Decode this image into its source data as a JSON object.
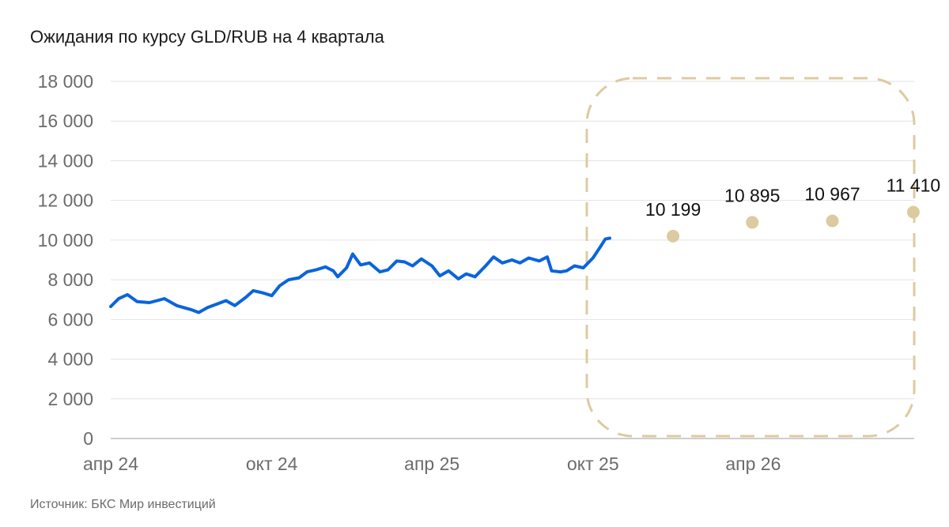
{
  "title": "Ожидания по курсу GLD/RUB на 4 квартала",
  "source": "Источник: БКС Мир инвестиций",
  "colors": {
    "history": "#0a64dc",
    "forecast": "#dccba0",
    "grid": "#e3e3e3",
    "axis": "#bdbdbd"
  },
  "chart_data": {
    "type": "line",
    "title": "Ожидания по курсу GLD/RUB на 4 квартала",
    "xlabel": "",
    "ylabel": "",
    "ylim": [
      0,
      18000
    ],
    "yticks": [
      0,
      2000,
      4000,
      6000,
      8000,
      10000,
      12000,
      14000,
      16000,
      18000
    ],
    "ytick_labels": [
      "0",
      "2 000",
      "4 000",
      "6 000",
      "8 000",
      "10 000",
      "12 000",
      "14 000",
      "16 000",
      "18 000"
    ],
    "x_range": [
      "2024-04-01",
      "2026-10-01"
    ],
    "xticks": [
      "2024-04-01",
      "2024-10-01",
      "2025-04-01",
      "2025-10-01",
      "2026-04-01"
    ],
    "xtick_labels": [
      "апр 24",
      "окт 24",
      "апр 25",
      "окт 25",
      "апр 26"
    ],
    "grid": true,
    "series": [
      {
        "type": "line",
        "points": [
          [
            "2024-04-01",
            6650
          ],
          [
            "2024-04-10",
            7050
          ],
          [
            "2024-04-20",
            7250
          ],
          [
            "2024-05-01",
            6900
          ],
          [
            "2024-05-15",
            6850
          ],
          [
            "2024-06-01",
            7050
          ],
          [
            "2024-06-15",
            6700
          ],
          [
            "2024-07-01",
            6500
          ],
          [
            "2024-07-10",
            6350
          ],
          [
            "2024-07-20",
            6600
          ],
          [
            "2024-08-01",
            6800
          ],
          [
            "2024-08-10",
            6950
          ],
          [
            "2024-08-20",
            6700
          ],
          [
            "2024-09-01",
            7100
          ],
          [
            "2024-09-10",
            7450
          ],
          [
            "2024-09-20",
            7350
          ],
          [
            "2024-10-01",
            7200
          ],
          [
            "2024-10-10",
            7700
          ],
          [
            "2024-10-20",
            8000
          ],
          [
            "2024-11-01",
            8100
          ],
          [
            "2024-11-10",
            8400
          ],
          [
            "2024-11-20",
            8500
          ],
          [
            "2024-12-01",
            8650
          ],
          [
            "2024-12-10",
            8450
          ],
          [
            "2024-12-15",
            8150
          ],
          [
            "2024-12-25",
            8600
          ],
          [
            "2025-01-01",
            9300
          ],
          [
            "2025-01-10",
            8750
          ],
          [
            "2025-01-20",
            8850
          ],
          [
            "2025-02-01",
            8400
          ],
          [
            "2025-02-10",
            8500
          ],
          [
            "2025-02-20",
            8950
          ],
          [
            "2025-03-01",
            8900
          ],
          [
            "2025-03-10",
            8700
          ],
          [
            "2025-03-20",
            9050
          ],
          [
            "2025-04-01",
            8700
          ],
          [
            "2025-04-10",
            8200
          ],
          [
            "2025-04-20",
            8450
          ],
          [
            "2025-05-01",
            8050
          ],
          [
            "2025-05-10",
            8300
          ],
          [
            "2025-05-20",
            8150
          ],
          [
            "2025-06-01",
            8700
          ],
          [
            "2025-06-10",
            9150
          ],
          [
            "2025-06-20",
            8850
          ],
          [
            "2025-07-01",
            9000
          ],
          [
            "2025-07-10",
            8850
          ],
          [
            "2025-07-20",
            9100
          ],
          [
            "2025-08-01",
            8950
          ],
          [
            "2025-08-10",
            9150
          ],
          [
            "2025-08-15",
            8450
          ],
          [
            "2025-08-25",
            8400
          ],
          [
            "2025-09-01",
            8450
          ],
          [
            "2025-09-10",
            8700
          ],
          [
            "2025-09-20",
            8600
          ],
          [
            "2025-10-01",
            9100
          ],
          [
            "2025-10-10",
            9700
          ],
          [
            "2025-10-15",
            10050
          ],
          [
            "2025-10-20",
            10100
          ]
        ]
      },
      {
        "type": "scatter",
        "points": [
          [
            "2025-12-31",
            10199,
            "10 199"
          ],
          [
            "2026-03-31",
            10895,
            "10 895"
          ],
          [
            "2026-06-30",
            10967,
            "10 967"
          ],
          [
            "2026-09-30",
            11410,
            "11 410"
          ]
        ]
      }
    ]
  }
}
